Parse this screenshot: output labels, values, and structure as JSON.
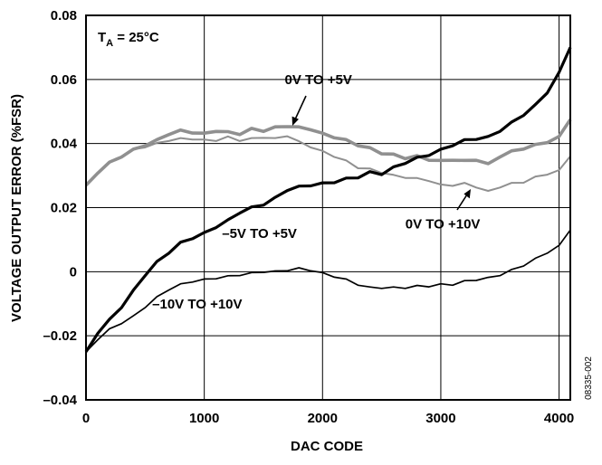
{
  "chart_data": {
    "type": "line",
    "title": "",
    "xlabel": "DAC CODE",
    "ylabel": "VOLTAGE OUTPUT ERROR (%FSR)",
    "xlim": [
      0,
      4095
    ],
    "ylim": [
      -0.04,
      0.08
    ],
    "x_ticks": [
      "0",
      "1000",
      "2000",
      "3000",
      "4000"
    ],
    "y_ticks": [
      "–0.04",
      "–0.02",
      "0",
      "0.02",
      "0.04",
      "0.06",
      "0.08"
    ],
    "grid": true,
    "legend": "none",
    "condition": {
      "main": "T",
      "sub": "A",
      "rest": " = 25°C"
    },
    "figure_id": "08335-002",
    "series": [
      {
        "name": "0V TO +5V",
        "color": "#909090",
        "x": [
          0,
          100,
          200,
          300,
          400,
          500,
          600,
          700,
          800,
          900,
          1000,
          1100,
          1200,
          1300,
          1400,
          1500,
          1600,
          1700,
          1800,
          1900,
          2000,
          2100,
          2200,
          2300,
          2400,
          2500,
          2600,
          2700,
          2800,
          2900,
          3000,
          3100,
          3200,
          3300,
          3400,
          3500,
          3600,
          3700,
          3800,
          3900,
          4000,
          4095
        ],
        "values": [
          0.027,
          0.031,
          0.034,
          0.036,
          0.038,
          0.0395,
          0.041,
          0.043,
          0.044,
          0.0435,
          0.043,
          0.044,
          0.0435,
          0.043,
          0.0445,
          0.044,
          0.045,
          0.0455,
          0.045,
          0.0445,
          0.043,
          0.042,
          0.041,
          0.0395,
          0.0385,
          0.037,
          0.0365,
          0.0355,
          0.036,
          0.035,
          0.0345,
          0.035,
          0.0345,
          0.035,
          0.0335,
          0.036,
          0.0375,
          0.0385,
          0.0395,
          0.0405,
          0.042,
          0.0475
        ]
      },
      {
        "name": "0V TO +10V",
        "color": "#909090",
        "x": [
          0,
          100,
          200,
          300,
          400,
          500,
          600,
          700,
          800,
          900,
          1000,
          1100,
          1200,
          1300,
          1400,
          1500,
          1600,
          1700,
          1800,
          1900,
          2000,
          2100,
          2200,
          2300,
          2400,
          2500,
          2600,
          2700,
          2800,
          2900,
          3000,
          3100,
          3200,
          3300,
          3400,
          3500,
          3600,
          3700,
          3800,
          3900,
          4000,
          4095
        ],
        "values": [
          0.027,
          0.031,
          0.034,
          0.036,
          0.038,
          0.039,
          0.04,
          0.041,
          0.0415,
          0.0415,
          0.041,
          0.041,
          0.042,
          0.041,
          0.0415,
          0.042,
          0.0415,
          0.0425,
          0.0405,
          0.039,
          0.0375,
          0.036,
          0.0345,
          0.0325,
          0.032,
          0.031,
          0.03,
          0.0295,
          0.029,
          0.0285,
          0.027,
          0.027,
          0.0275,
          0.0265,
          0.025,
          0.0265,
          0.0275,
          0.028,
          0.0295,
          0.0305,
          0.0315,
          0.036
        ]
      },
      {
        "name": "–5V TO +5V",
        "color": "#000000",
        "x": [
          0,
          100,
          200,
          300,
          400,
          500,
          600,
          700,
          800,
          900,
          1000,
          1100,
          1200,
          1300,
          1400,
          1500,
          1600,
          1700,
          1800,
          1900,
          2000,
          2100,
          2200,
          2300,
          2400,
          2500,
          2600,
          2700,
          2800,
          2900,
          3000,
          3100,
          3200,
          3300,
          3400,
          3500,
          3600,
          3700,
          3800,
          3900,
          4000,
          4095
        ],
        "values": [
          -0.025,
          -0.019,
          -0.015,
          -0.011,
          -0.006,
          -0.001,
          0.003,
          0.006,
          0.009,
          0.0105,
          0.012,
          0.014,
          0.016,
          0.0185,
          0.02,
          0.021,
          0.023,
          0.0255,
          0.0265,
          0.027,
          0.0275,
          0.028,
          0.029,
          0.0295,
          0.031,
          0.0305,
          0.0325,
          0.034,
          0.0355,
          0.0365,
          0.038,
          0.0395,
          0.041,
          0.0415,
          0.042,
          0.044,
          0.0465,
          0.049,
          0.052,
          0.056,
          0.062,
          0.07
        ]
      },
      {
        "name": "–10V TO +10V",
        "color": "#000000",
        "x": [
          0,
          100,
          200,
          300,
          400,
          500,
          600,
          700,
          800,
          900,
          1000,
          1100,
          1200,
          1300,
          1400,
          1500,
          1600,
          1700,
          1800,
          1900,
          2000,
          2100,
          2200,
          2300,
          2400,
          2500,
          2600,
          2700,
          2800,
          2900,
          3000,
          3100,
          3200,
          3300,
          3400,
          3500,
          3600,
          3700,
          3800,
          3900,
          4000,
          4095
        ],
        "values": [
          -0.025,
          -0.021,
          -0.018,
          -0.016,
          -0.014,
          -0.011,
          -0.008,
          -0.0055,
          -0.004,
          -0.003,
          -0.0025,
          -0.002,
          -0.0015,
          -0.001,
          -0.0005,
          0,
          0,
          0.0005,
          0.001,
          0.0005,
          -0.0005,
          -0.0015,
          -0.0025,
          -0.004,
          -0.005,
          -0.005,
          -0.005,
          -0.005,
          -0.0045,
          -0.0045,
          -0.004,
          -0.004,
          -0.003,
          -0.0025,
          -0.002,
          -0.001,
          0.0005,
          0.002,
          0.004,
          0.006,
          0.008,
          0.013
        ]
      }
    ],
    "annotations": [
      {
        "text": "0V TO +5V",
        "x": 1680,
        "y": 0.0585
      },
      {
        "text": "0V TO +10V",
        "x": 2700,
        "y": 0.0135
      },
      {
        "text": "–5V TO +5V",
        "x": 1150,
        "y": 0.0105
      },
      {
        "text": "–10V TO +10V",
        "x": 560,
        "y": -0.0115
      }
    ]
  }
}
